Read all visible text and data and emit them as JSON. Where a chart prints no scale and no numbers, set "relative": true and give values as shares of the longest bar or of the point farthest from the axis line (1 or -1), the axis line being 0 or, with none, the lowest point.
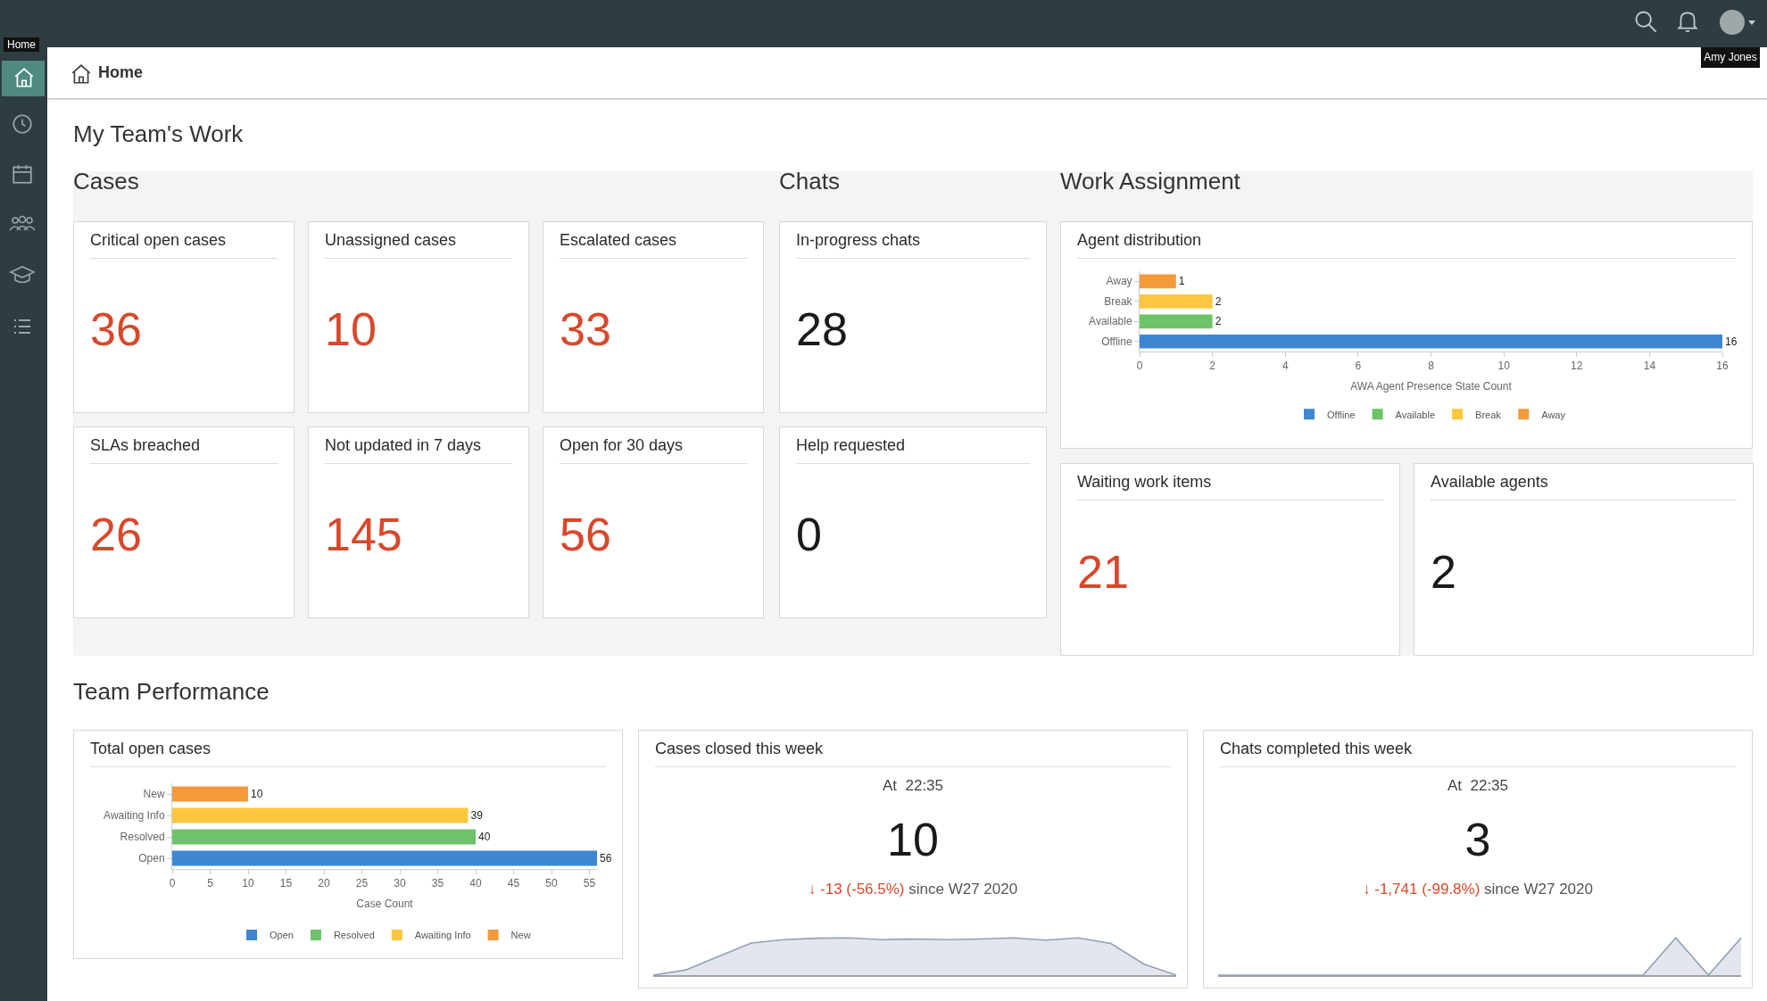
{
  "chart_data": [
    {
      "type": "other",
      "title": "My Team's Work",
      "subtitle": "Cases",
      "annotations": [
        "Critical open cases",
        "36",
        "Unassigned cases",
        "10",
        "Escalated cases",
        "33",
        "SLAs breached",
        "26",
        "Not updated in 7 days",
        "145",
        "Open for 30 days",
        "56",
        "Home",
        "Home",
        "Amy Jones"
      ]
    },
    {
      "type": "other",
      "subtitle": "Chats",
      "annotations": [
        "In-progress chats",
        "28",
        "Help requested",
        "0"
      ]
    },
    {
      "type": "bar",
      "subtitle": "Work Assignment",
      "title": "Agent distribution",
      "orientation": "horizontal",
      "categories": [
        "Away",
        "Break",
        "Available",
        "Offline"
      ],
      "series": [
        {
          "name": "Offline",
          "color": "#3f86d1",
          "values": [
            null,
            null,
            null,
            16
          ]
        },
        {
          "name": "Available",
          "color": "#6cc36a",
          "values": [
            null,
            null,
            2,
            null
          ]
        },
        {
          "name": "Break",
          "color": "#fcc73e",
          "values": [
            null,
            2,
            null,
            null
          ]
        },
        {
          "name": "Away",
          "color": "#f59a3b",
          "values": [
            1,
            null,
            null,
            null
          ]
        }
      ],
      "xlim": [
        0,
        16
      ],
      "xticks": [
        0,
        2,
        4,
        6,
        8,
        10,
        12,
        14,
        16
      ],
      "xlabel": "AWA Agent Presence State Count",
      "data_labels": true,
      "legend": "bottom"
    },
    {
      "type": "other",
      "annotations": [
        "Waiting work items",
        "21",
        "Available agents",
        "2"
      ]
    },
    {
      "type": "bar",
      "subtitle": "Team Performance",
      "title": "Total open cases",
      "orientation": "horizontal",
      "categories": [
        "New",
        "Awaiting Info",
        "Resolved",
        "Open"
      ],
      "series": [
        {
          "name": "Open",
          "color": "#3f86d1",
          "values": [
            null,
            null,
            null,
            56
          ]
        },
        {
          "name": "Resolved",
          "color": "#6cc36a",
          "values": [
            null,
            null,
            40,
            null
          ]
        },
        {
          "name": "Awaiting Info",
          "color": "#fcc73e",
          "values": [
            null,
            39,
            null,
            null
          ]
        },
        {
          "name": "New",
          "color": "#f59a3b",
          "values": [
            10,
            null,
            null,
            null
          ]
        }
      ],
      "xlim": [
        0,
        56
      ],
      "xticks": [
        0,
        5,
        10,
        15,
        20,
        25,
        30,
        35,
        40,
        45,
        50,
        55
      ],
      "xlabel": "Case Count",
      "data_labels": true,
      "legend": "bottom"
    },
    {
      "type": "area",
      "title": "Cases closed this week",
      "subtitle": "At  22:35",
      "annotations": [
        "10",
        "↓ -13 (-56.5%)",
        "since W27 2020"
      ],
      "relative": true,
      "categories": [
        null,
        null,
        null,
        null,
        null,
        null,
        null,
        null,
        null,
        null,
        null,
        null,
        null,
        null,
        null,
        null,
        null
      ],
      "series": [
        {
          "color": "#8fa0b8",
          "values": [
            0,
            0.14,
            0.5,
            0.86,
            0.95,
            0.99,
            1,
            0.95,
            0.97,
            0.95,
            0.97,
            1,
            0.94,
            1,
            0.85,
            0.3,
            0
          ]
        }
      ]
    },
    {
      "type": "area",
      "title": "Chats completed this week",
      "subtitle": "At  22:35",
      "annotations": [
        "3",
        "↓ -1,741 (-99.8%)",
        "since W27 2020"
      ],
      "relative": true,
      "categories": [
        null,
        null,
        null,
        null,
        null,
        null,
        null,
        null,
        null,
        null,
        null,
        null,
        null,
        null,
        null,
        null,
        null
      ],
      "series": [
        {
          "color": "#8fa0b8",
          "values": [
            0,
            0,
            0,
            0,
            0,
            0,
            0,
            0,
            0,
            0,
            0,
            0,
            0,
            0,
            1,
            0,
            1
          ]
        }
      ]
    }
  ]
}
